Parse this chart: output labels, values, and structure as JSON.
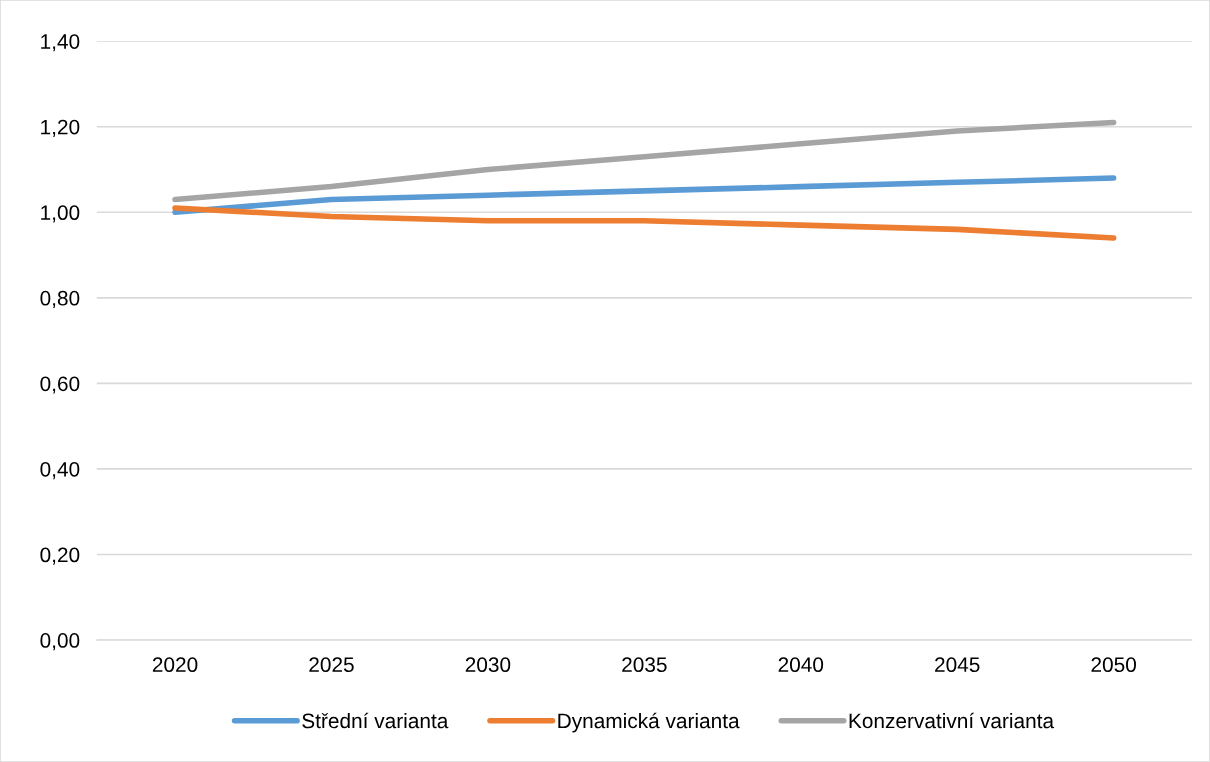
{
  "chart_data": {
    "type": "line",
    "categories": [
      "2020",
      "2025",
      "2030",
      "2035",
      "2040",
      "2045",
      "2050"
    ],
    "series": [
      {
        "name": "Střední varianta",
        "color": "#5b9bd5",
        "values": [
          1.0,
          1.03,
          1.04,
          1.05,
          1.06,
          1.07,
          1.08
        ]
      },
      {
        "name": "Dynamická varianta",
        "color": "#ed7d31",
        "values": [
          1.01,
          0.99,
          0.98,
          0.98,
          0.97,
          0.96,
          0.94
        ]
      },
      {
        "name": "Konzervativní varianta",
        "color": "#a5a5a5",
        "values": [
          1.03,
          1.06,
          1.1,
          1.13,
          1.16,
          1.19,
          1.21
        ]
      }
    ],
    "ylim": [
      0,
      1.4
    ],
    "yticks": [
      {
        "value": 0,
        "label": "0,00"
      },
      {
        "value": 0.2,
        "label": "0,20"
      },
      {
        "value": 0.4,
        "label": "0,40"
      },
      {
        "value": 0.6,
        "label": "0,60"
      },
      {
        "value": 0.8,
        "label": "0,80"
      },
      {
        "value": 1.0,
        "label": "1,00"
      },
      {
        "value": 1.2,
        "label": "1,20"
      },
      {
        "value": 1.4,
        "label": "1,40"
      }
    ],
    "grid": "y",
    "legend": "bottom",
    "marker": "none",
    "line_style": "solid"
  }
}
